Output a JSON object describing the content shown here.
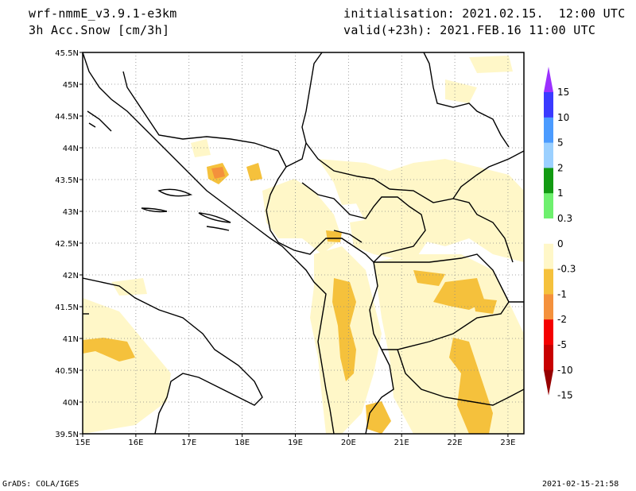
{
  "header": {
    "model": "wrf-nmmE_v3.9.1-e3km",
    "field": "3h Acc.Snow [cm/3h]",
    "init": "initialisation: 2021.02.15.  12:00 UTC",
    "valid": "valid(+23h): 2021.FEB.16 11:00 UTC"
  },
  "footer": {
    "left": "GrADS: COLA/IGES",
    "right": "2021-02-15-21:58"
  },
  "map": {
    "lat_labels": [
      "45.5N",
      "45N",
      "44.5N",
      "44N",
      "43.5N",
      "43N",
      "42.5N",
      "42N",
      "41.5N",
      "41N",
      "40.5N",
      "40N",
      "39.5N"
    ],
    "lon_labels": [
      "15E",
      "16E",
      "17E",
      "18E",
      "19E",
      "20E",
      "21E",
      "22E",
      "23E"
    ],
    "lon_range": [
      15,
      23.3
    ],
    "lat_range": [
      39.5,
      45.5
    ],
    "grid": true
  },
  "colorbar": {
    "labels": [
      "15",
      "10",
      "5",
      "2",
      "1",
      "0.3",
      "0",
      "-0.3",
      "-1",
      "-2",
      "-5",
      "-10",
      "-15"
    ],
    "colors": [
      "#9b30ff",
      "#3a3aff",
      "#4b9bff",
      "#9bd0ff",
      "#129a12",
      "#6ef06e",
      "#ffffff",
      "#fff7c8",
      "#f5c13c",
      "#f4913c",
      "#f40000",
      "#c80000",
      "#960000"
    ]
  }
}
